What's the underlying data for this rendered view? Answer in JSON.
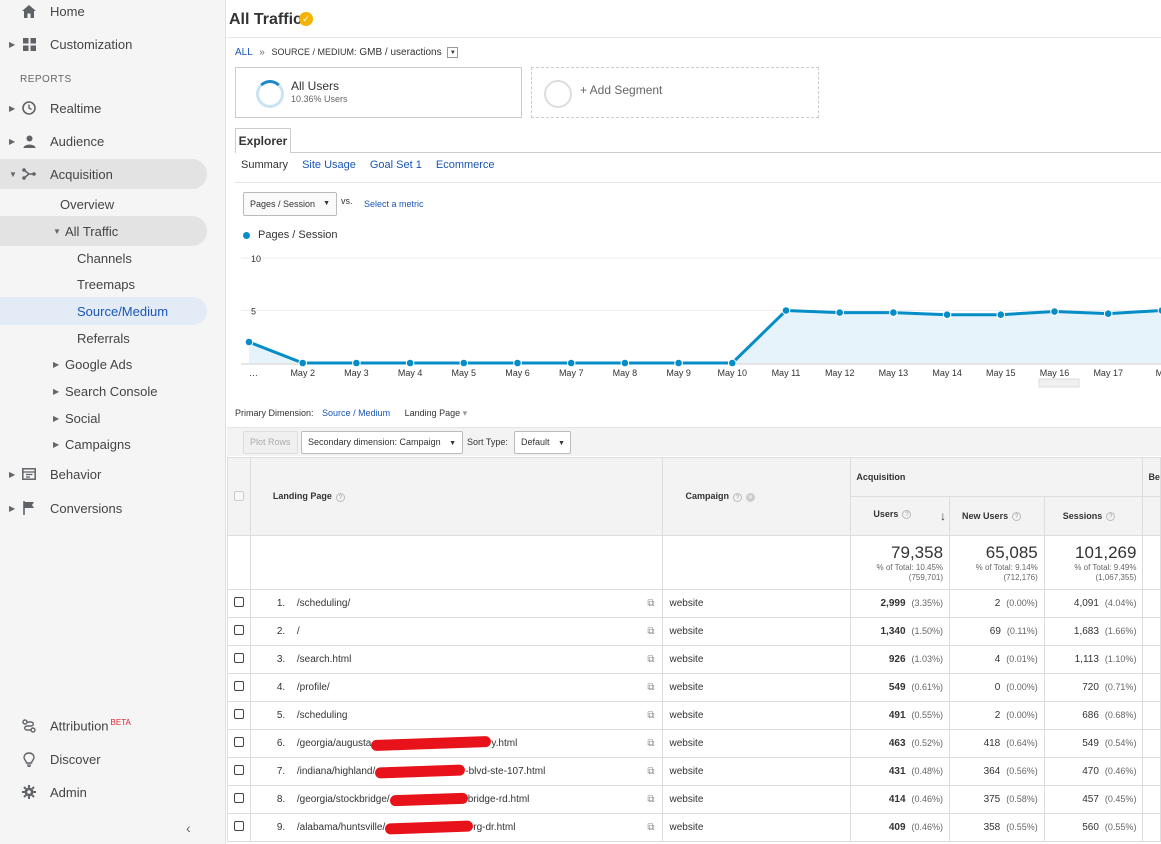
{
  "sidebar": {
    "home": "Home",
    "customization": "Customization",
    "reports_header": "REPORTS",
    "realtime": "Realtime",
    "audience": "Audience",
    "acquisition": "Acquisition",
    "overview": "Overview",
    "all_traffic": "All Traffic",
    "channels": "Channels",
    "treemaps": "Treemaps",
    "source_medium": "Source/Medium",
    "referrals": "Referrals",
    "google_ads": "Google Ads",
    "search_console": "Search Console",
    "social": "Social",
    "campaigns": "Campaigns",
    "behavior": "Behavior",
    "conversions": "Conversions",
    "attribution": "Attribution",
    "attribution_badge": "BETA",
    "discover": "Discover",
    "admin": "Admin",
    "collapse": "‹"
  },
  "header": {
    "title": "All Traffic",
    "verified": "✓"
  },
  "breadcrumb": {
    "all": "ALL",
    "sep": "»",
    "dimension": "SOURCE / MEDIUM:",
    "value": "GMB / useractions",
    "dd": "▼"
  },
  "segments": {
    "active_name": "All Users",
    "active_sub": "10.36% Users",
    "add": "+ Add Segment"
  },
  "explorer": {
    "tab": "Explorer",
    "subtabs": {
      "summary": "Summary",
      "site_usage": "Site Usage",
      "goal_set": "Goal Set 1",
      "ecommerce": "Ecommerce"
    },
    "metric": "Pages / Session",
    "vs": "vs.",
    "select_metric": "Select a metric",
    "legend": "Pages / Session"
  },
  "chart_data": {
    "type": "area",
    "series": [
      {
        "name": "Pages / Session",
        "values": [
          2,
          0,
          0,
          0,
          0,
          0,
          0,
          0,
          0,
          0,
          5,
          4.8,
          4.8,
          4.6,
          4.6,
          4.9,
          4.7,
          5
        ]
      }
    ],
    "categories": [
      "…",
      "May 2",
      "May 3",
      "May 4",
      "May 5",
      "May 6",
      "May 7",
      "May 8",
      "May 9",
      "May 10",
      "May 11",
      "May 12",
      "May 13",
      "May 14",
      "May 15",
      "May 16",
      "May 17",
      "Ma"
    ],
    "y_ticks": [
      "10",
      "5"
    ],
    "ylim": [
      0,
      10
    ],
    "color": "#058dc7",
    "grid": true
  },
  "dimensions": {
    "label": "Primary Dimension:",
    "source_medium": "Source / Medium",
    "landing_page": "Landing Page",
    "lp_caret": "▾"
  },
  "controls": {
    "plot_rows": "Plot Rows",
    "secondary": "Secondary dimension: Campaign",
    "sort_type_label": "Sort Type:",
    "sort_type": "Default",
    "arrow": "▼"
  },
  "table": {
    "col_landing": "Landing Page",
    "col_campaign": "Campaign",
    "group_acquisition": "Acquisition",
    "group_behavior": "Be",
    "col_users": "Users",
    "col_new_users": "New Users",
    "col_sessions": "Sessions",
    "sort_arrow": "↓",
    "help": "?",
    "remove": "✕",
    "popout": "⧉",
    "totals": {
      "users": "79,358",
      "users_pct": "% of Total: 10.45%",
      "users_total": "(759,701)",
      "new_users": "65,085",
      "new_users_pct": "% of Total: 9.14%",
      "new_users_total": "(712,176)",
      "sessions": "101,269",
      "sessions_pct": "% of Total: 9.49%",
      "sessions_total": "(1,067,355)"
    },
    "rows": [
      {
        "idx": "1.",
        "page_a": "/scheduling/",
        "page_b": "",
        "campaign": "website",
        "users": "2,999",
        "users_pct": "(3.35%)",
        "new_users": "2",
        "new_users_pct": "(0.00%)",
        "sessions": "4,091",
        "sessions_pct": "(4.04%)"
      },
      {
        "idx": "2.",
        "page_a": "/",
        "page_b": "",
        "campaign": "website",
        "users": "1,340",
        "users_pct": "(1.50%)",
        "new_users": "69",
        "new_users_pct": "(0.11%)",
        "sessions": "1,683",
        "sessions_pct": "(1.66%)"
      },
      {
        "idx": "3.",
        "page_a": "/search.html",
        "page_b": "",
        "campaign": "website",
        "users": "926",
        "users_pct": "(1.03%)",
        "new_users": "4",
        "new_users_pct": "(0.01%)",
        "sessions": "1,113",
        "sessions_pct": "(1.10%)"
      },
      {
        "idx": "4.",
        "page_a": "/profile/",
        "page_b": "",
        "campaign": "website",
        "users": "549",
        "users_pct": "(0.61%)",
        "new_users": "0",
        "new_users_pct": "(0.00%)",
        "sessions": "720",
        "sessions_pct": "(0.71%)"
      },
      {
        "idx": "5.",
        "page_a": "/scheduling",
        "page_b": "",
        "campaign": "website",
        "users": "491",
        "users_pct": "(0.55%)",
        "new_users": "2",
        "new_users_pct": "(0.00%)",
        "sessions": "686",
        "sessions_pct": "(0.68%)"
      },
      {
        "idx": "6.",
        "page_a": "/georgia/augusta",
        "page_b": "y.html",
        "campaign": "website",
        "users": "463",
        "users_pct": "(0.52%)",
        "new_users": "418",
        "new_users_pct": "(0.64%)",
        "sessions": "549",
        "sessions_pct": "(0.54%)"
      },
      {
        "idx": "7.",
        "page_a": "/indiana/highland/",
        "page_b": "-blvd-ste-107.html",
        "campaign": "website",
        "users": "431",
        "users_pct": "(0.48%)",
        "new_users": "364",
        "new_users_pct": "(0.56%)",
        "sessions": "470",
        "sessions_pct": "(0.46%)"
      },
      {
        "idx": "8.",
        "page_a": "/georgia/stockbridge/",
        "page_b": "bridge-rd.html",
        "campaign": "website",
        "users": "414",
        "users_pct": "(0.46%)",
        "new_users": "375",
        "new_users_pct": "(0.58%)",
        "sessions": "457",
        "sessions_pct": "(0.45%)"
      },
      {
        "idx": "9.",
        "page_a": "/alabama/huntsville/",
        "page_b": "rg-dr.html",
        "campaign": "website",
        "users": "409",
        "users_pct": "(0.46%)",
        "new_users": "358",
        "new_users_pct": "(0.55%)",
        "sessions": "560",
        "sessions_pct": "(0.55%)"
      }
    ]
  }
}
